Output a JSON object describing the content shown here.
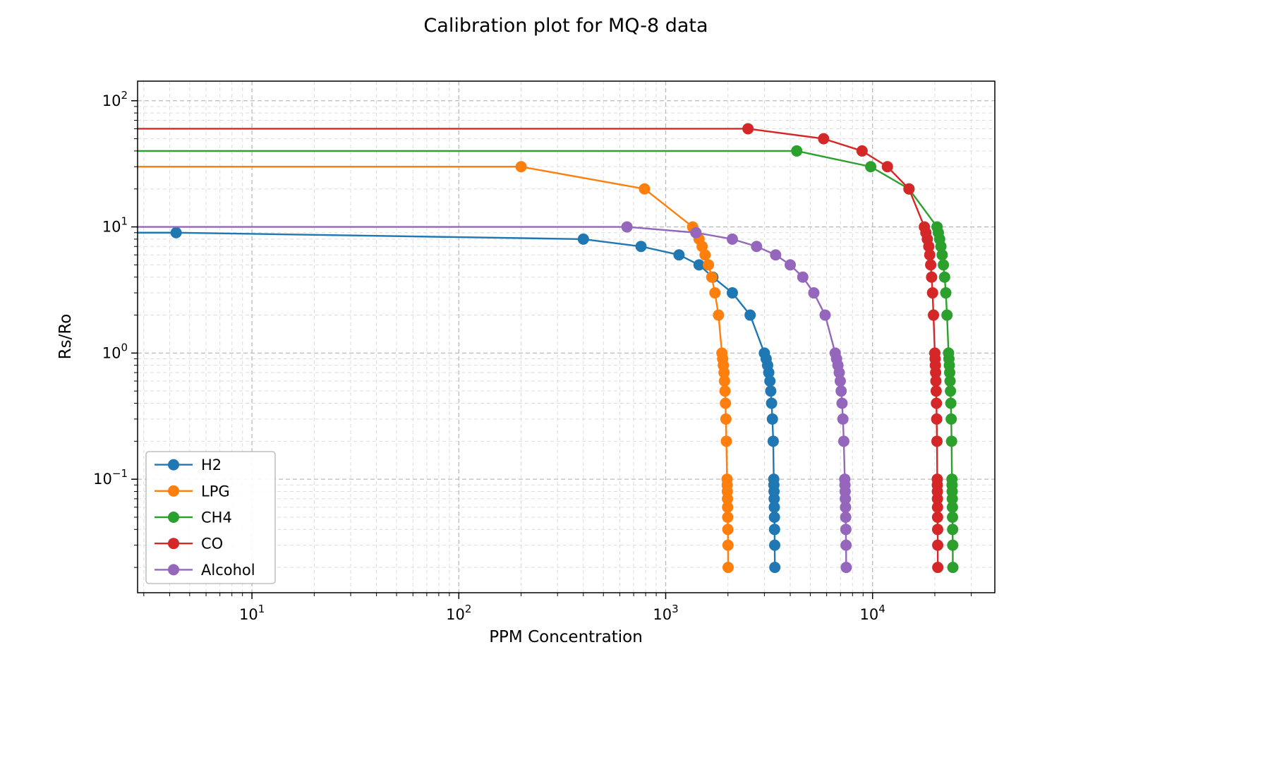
{
  "figure": {
    "background_color": "#ffffff"
  },
  "chart_data": {
    "type": "line",
    "title": "Calibration plot for MQ-8 data",
    "xlabel": "PPM Concentration",
    "ylabel": "Rs/Ro",
    "x_scale": "log",
    "y_scale": "log",
    "xlim": [
      2.8,
      39000
    ],
    "ylim": [
      0.0126,
      143
    ],
    "x_major_ticks": [
      10,
      100,
      1000,
      10000
    ],
    "y_major_ticks": [
      0.1,
      1,
      10,
      100
    ],
    "grid": {
      "major": true,
      "minor": true,
      "style": "dashed",
      "major_color": "#bbbbbb",
      "minor_color": "#dddddd"
    },
    "legend": {
      "position": "lower-left",
      "entries": [
        "H2",
        "LPG",
        "CH4",
        "CO",
        "Alcohol"
      ]
    },
    "lines_extend_to_left_edge": true,
    "marker": "circle",
    "series": [
      {
        "name": "H2",
        "color": "#1f77b4",
        "rs_ro": [
          9,
          8,
          7,
          6,
          5,
          4,
          3,
          2,
          1,
          0.9,
          0.8,
          0.7,
          0.6,
          0.5,
          0.4,
          0.3,
          0.2,
          0.1,
          0.09,
          0.08,
          0.07,
          0.06,
          0.05,
          0.04,
          0.03,
          0.02
        ],
        "ppm": [
          4.3,
          400,
          760,
          1160,
          1450,
          1690,
          2100,
          2560,
          3000,
          3060,
          3110,
          3150,
          3190,
          3220,
          3250,
          3280,
          3310,
          3330,
          3335,
          3340,
          3345,
          3350,
          3355,
          3360,
          3365,
          3370
        ]
      },
      {
        "name": "LPG",
        "color": "#ff7f0e",
        "rs_ro": [
          30,
          20,
          10,
          9,
          8,
          7,
          6,
          5,
          4,
          3,
          2,
          1,
          0.9,
          0.8,
          0.7,
          0.6,
          0.5,
          0.4,
          0.3,
          0.2,
          0.1,
          0.09,
          0.08,
          0.07,
          0.06,
          0.05,
          0.04,
          0.03,
          0.02
        ],
        "ppm": [
          200,
          790,
          1350,
          1400,
          1450,
          1500,
          1550,
          1610,
          1670,
          1730,
          1800,
          1870,
          1885,
          1900,
          1915,
          1925,
          1935,
          1945,
          1955,
          1965,
          1980,
          1983,
          1986,
          1989,
          1992,
          1995,
          1998,
          2001,
          2004
        ]
      },
      {
        "name": "CH4",
        "color": "#2ca02c",
        "rs_ro": [
          40,
          30,
          20,
          10,
          9,
          8,
          7,
          6,
          5,
          4,
          3,
          2,
          1,
          0.9,
          0.8,
          0.7,
          0.6,
          0.5,
          0.4,
          0.3,
          0.2,
          0.1,
          0.09,
          0.08,
          0.07,
          0.06,
          0.05,
          0.04,
          0.03,
          0.02
        ],
        "ppm": [
          4300,
          9800,
          15000,
          20500,
          20800,
          21100,
          21400,
          21700,
          22000,
          22300,
          22600,
          22900,
          23300,
          23400,
          23500,
          23600,
          23700,
          23800,
          23900,
          24000,
          24100,
          24200,
          24230,
          24260,
          24290,
          24320,
          24350,
          24380,
          24410,
          24440
        ]
      },
      {
        "name": "CO",
        "color": "#d62728",
        "rs_ro": [
          60,
          50,
          40,
          30,
          20,
          10,
          9,
          8,
          7,
          6,
          5,
          4,
          3,
          2,
          1,
          0.9,
          0.8,
          0.7,
          0.6,
          0.5,
          0.4,
          0.3,
          0.2,
          0.1,
          0.09,
          0.08,
          0.07,
          0.06,
          0.05,
          0.04,
          0.03,
          0.02
        ],
        "ppm": [
          2500,
          5800,
          8900,
          11800,
          15000,
          17800,
          18100,
          18400,
          18700,
          18900,
          19100,
          19300,
          19500,
          19700,
          20000,
          20060,
          20120,
          20180,
          20240,
          20300,
          20360,
          20420,
          20480,
          20550,
          20565,
          20580,
          20595,
          20610,
          20625,
          20640,
          20655,
          20670
        ]
      },
      {
        "name": "Alcohol",
        "color": "#9467bd",
        "rs_ro": [
          10,
          9,
          8,
          7,
          6,
          5,
          4,
          3,
          2,
          1,
          0.9,
          0.8,
          0.7,
          0.6,
          0.5,
          0.4,
          0.3,
          0.2,
          0.1,
          0.09,
          0.08,
          0.07,
          0.06,
          0.05,
          0.04,
          0.03,
          0.02
        ],
        "ppm": [
          650,
          1400,
          2100,
          2750,
          3400,
          4000,
          4600,
          5200,
          5900,
          6600,
          6700,
          6800,
          6900,
          6980,
          7050,
          7120,
          7190,
          7260,
          7340,
          7355,
          7370,
          7385,
          7400,
          7415,
          7430,
          7445,
          7460
        ]
      }
    ]
  }
}
